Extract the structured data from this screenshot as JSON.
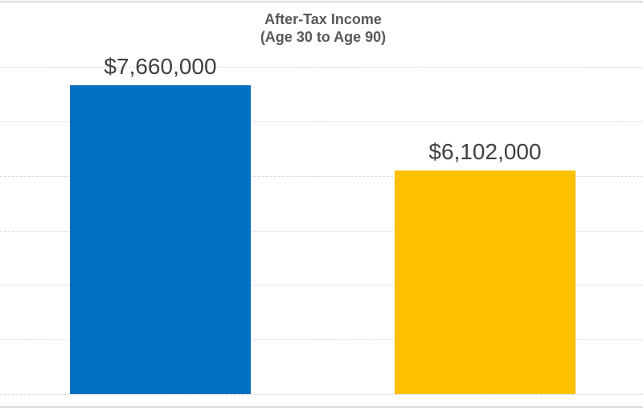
{
  "page": {
    "background_color": "#ffffff",
    "gridline_color": "#dadada",
    "frame_line_color": "#dcdcdc",
    "title_color": "#595959",
    "label_color": "#404040"
  },
  "chart_data": {
    "type": "bar",
    "title": "After-Tax Income",
    "subtitle": "(Age 30 to Age 90)",
    "bars": [
      {
        "label": "$7,660,000",
        "value": 7660000,
        "color": "#0070C0",
        "name": "blue-bar"
      },
      {
        "label": "$6,102,000",
        "value": 6102000,
        "color": "#FFC000",
        "name": "gold-bar"
      }
    ],
    "ylim": [
      2000000,
      9200000
    ],
    "gridline_step": 1000000,
    "grid": "on",
    "legend": "none",
    "xlabel": "",
    "ylabel": "",
    "axis_tick_labels_visible": false
  }
}
